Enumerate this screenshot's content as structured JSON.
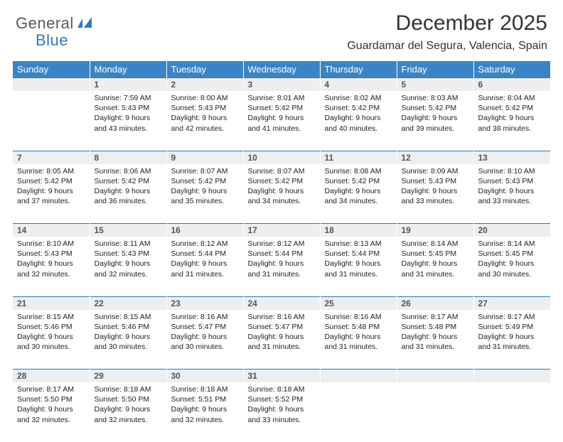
{
  "brand": {
    "part1": "General",
    "part2": "Blue"
  },
  "title": "December 2025",
  "location": "Guardamar del Segura, Valencia, Spain",
  "colors": {
    "header_bg": "#3a84c5",
    "header_text": "#ffffff",
    "rule": "#2d79bd",
    "daynum_bg": "#eceeef",
    "logo_gray": "#555a5f",
    "logo_blue": "#2d79bd",
    "body_text": "#222222"
  },
  "dayHeaders": [
    "Sunday",
    "Monday",
    "Tuesday",
    "Wednesday",
    "Thursday",
    "Friday",
    "Saturday"
  ],
  "weeks": [
    [
      {
        "n": "",
        "sunrise": "",
        "sunset": "",
        "daylight1": "",
        "daylight2": ""
      },
      {
        "n": "1",
        "sunrise": "Sunrise: 7:59 AM",
        "sunset": "Sunset: 5:43 PM",
        "daylight1": "Daylight: 9 hours",
        "daylight2": "and 43 minutes."
      },
      {
        "n": "2",
        "sunrise": "Sunrise: 8:00 AM",
        "sunset": "Sunset: 5:43 PM",
        "daylight1": "Daylight: 9 hours",
        "daylight2": "and 42 minutes."
      },
      {
        "n": "3",
        "sunrise": "Sunrise: 8:01 AM",
        "sunset": "Sunset: 5:42 PM",
        "daylight1": "Daylight: 9 hours",
        "daylight2": "and 41 minutes."
      },
      {
        "n": "4",
        "sunrise": "Sunrise: 8:02 AM",
        "sunset": "Sunset: 5:42 PM",
        "daylight1": "Daylight: 9 hours",
        "daylight2": "and 40 minutes."
      },
      {
        "n": "5",
        "sunrise": "Sunrise: 8:03 AM",
        "sunset": "Sunset: 5:42 PM",
        "daylight1": "Daylight: 9 hours",
        "daylight2": "and 39 minutes."
      },
      {
        "n": "6",
        "sunrise": "Sunrise: 8:04 AM",
        "sunset": "Sunset: 5:42 PM",
        "daylight1": "Daylight: 9 hours",
        "daylight2": "and 38 minutes."
      }
    ],
    [
      {
        "n": "7",
        "sunrise": "Sunrise: 8:05 AM",
        "sunset": "Sunset: 5:42 PM",
        "daylight1": "Daylight: 9 hours",
        "daylight2": "and 37 minutes."
      },
      {
        "n": "8",
        "sunrise": "Sunrise: 8:06 AM",
        "sunset": "Sunset: 5:42 PM",
        "daylight1": "Daylight: 9 hours",
        "daylight2": "and 36 minutes."
      },
      {
        "n": "9",
        "sunrise": "Sunrise: 8:07 AM",
        "sunset": "Sunset: 5:42 PM",
        "daylight1": "Daylight: 9 hours",
        "daylight2": "and 35 minutes."
      },
      {
        "n": "10",
        "sunrise": "Sunrise: 8:07 AM",
        "sunset": "Sunset: 5:42 PM",
        "daylight1": "Daylight: 9 hours",
        "daylight2": "and 34 minutes."
      },
      {
        "n": "11",
        "sunrise": "Sunrise: 8:08 AM",
        "sunset": "Sunset: 5:42 PM",
        "daylight1": "Daylight: 9 hours",
        "daylight2": "and 34 minutes."
      },
      {
        "n": "12",
        "sunrise": "Sunrise: 8:09 AM",
        "sunset": "Sunset: 5:43 PM",
        "daylight1": "Daylight: 9 hours",
        "daylight2": "and 33 minutes."
      },
      {
        "n": "13",
        "sunrise": "Sunrise: 8:10 AM",
        "sunset": "Sunset: 5:43 PM",
        "daylight1": "Daylight: 9 hours",
        "daylight2": "and 33 minutes."
      }
    ],
    [
      {
        "n": "14",
        "sunrise": "Sunrise: 8:10 AM",
        "sunset": "Sunset: 5:43 PM",
        "daylight1": "Daylight: 9 hours",
        "daylight2": "and 32 minutes."
      },
      {
        "n": "15",
        "sunrise": "Sunrise: 8:11 AM",
        "sunset": "Sunset: 5:43 PM",
        "daylight1": "Daylight: 9 hours",
        "daylight2": "and 32 minutes."
      },
      {
        "n": "16",
        "sunrise": "Sunrise: 8:12 AM",
        "sunset": "Sunset: 5:44 PM",
        "daylight1": "Daylight: 9 hours",
        "daylight2": "and 31 minutes."
      },
      {
        "n": "17",
        "sunrise": "Sunrise: 8:12 AM",
        "sunset": "Sunset: 5:44 PM",
        "daylight1": "Daylight: 9 hours",
        "daylight2": "and 31 minutes."
      },
      {
        "n": "18",
        "sunrise": "Sunrise: 8:13 AM",
        "sunset": "Sunset: 5:44 PM",
        "daylight1": "Daylight: 9 hours",
        "daylight2": "and 31 minutes."
      },
      {
        "n": "19",
        "sunrise": "Sunrise: 8:14 AM",
        "sunset": "Sunset: 5:45 PM",
        "daylight1": "Daylight: 9 hours",
        "daylight2": "and 31 minutes."
      },
      {
        "n": "20",
        "sunrise": "Sunrise: 8:14 AM",
        "sunset": "Sunset: 5:45 PM",
        "daylight1": "Daylight: 9 hours",
        "daylight2": "and 30 minutes."
      }
    ],
    [
      {
        "n": "21",
        "sunrise": "Sunrise: 8:15 AM",
        "sunset": "Sunset: 5:46 PM",
        "daylight1": "Daylight: 9 hours",
        "daylight2": "and 30 minutes."
      },
      {
        "n": "22",
        "sunrise": "Sunrise: 8:15 AM",
        "sunset": "Sunset: 5:46 PM",
        "daylight1": "Daylight: 9 hours",
        "daylight2": "and 30 minutes."
      },
      {
        "n": "23",
        "sunrise": "Sunrise: 8:16 AM",
        "sunset": "Sunset: 5:47 PM",
        "daylight1": "Daylight: 9 hours",
        "daylight2": "and 30 minutes."
      },
      {
        "n": "24",
        "sunrise": "Sunrise: 8:16 AM",
        "sunset": "Sunset: 5:47 PM",
        "daylight1": "Daylight: 9 hours",
        "daylight2": "and 31 minutes."
      },
      {
        "n": "25",
        "sunrise": "Sunrise: 8:16 AM",
        "sunset": "Sunset: 5:48 PM",
        "daylight1": "Daylight: 9 hours",
        "daylight2": "and 31 minutes."
      },
      {
        "n": "26",
        "sunrise": "Sunrise: 8:17 AM",
        "sunset": "Sunset: 5:48 PM",
        "daylight1": "Daylight: 9 hours",
        "daylight2": "and 31 minutes."
      },
      {
        "n": "27",
        "sunrise": "Sunrise: 8:17 AM",
        "sunset": "Sunset: 5:49 PM",
        "daylight1": "Daylight: 9 hours",
        "daylight2": "and 31 minutes."
      }
    ],
    [
      {
        "n": "28",
        "sunrise": "Sunrise: 8:17 AM",
        "sunset": "Sunset: 5:50 PM",
        "daylight1": "Daylight: 9 hours",
        "daylight2": "and 32 minutes."
      },
      {
        "n": "29",
        "sunrise": "Sunrise: 8:18 AM",
        "sunset": "Sunset: 5:50 PM",
        "daylight1": "Daylight: 9 hours",
        "daylight2": "and 32 minutes."
      },
      {
        "n": "30",
        "sunrise": "Sunrise: 8:18 AM",
        "sunset": "Sunset: 5:51 PM",
        "daylight1": "Daylight: 9 hours",
        "daylight2": "and 32 minutes."
      },
      {
        "n": "31",
        "sunrise": "Sunrise: 8:18 AM",
        "sunset": "Sunset: 5:52 PM",
        "daylight1": "Daylight: 9 hours",
        "daylight2": "and 33 minutes."
      },
      {
        "n": "",
        "sunrise": "",
        "sunset": "",
        "daylight1": "",
        "daylight2": ""
      },
      {
        "n": "",
        "sunrise": "",
        "sunset": "",
        "daylight1": "",
        "daylight2": ""
      },
      {
        "n": "",
        "sunrise": "",
        "sunset": "",
        "daylight1": "",
        "daylight2": ""
      }
    ]
  ]
}
